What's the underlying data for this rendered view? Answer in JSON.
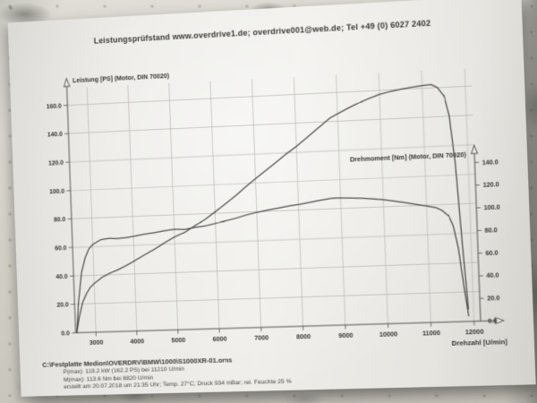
{
  "header": {
    "contact_line": "Leistungsprüfstand www.overdrive1.de; overdrive001@web.de; Tel +49 (0) 6027 2402"
  },
  "colors": {
    "paper": "#e9e8e4",
    "curve": "#42403d",
    "grid": "#b2b0aa",
    "axis": "#55534f",
    "tick_text": "#383633"
  },
  "chart_data": {
    "type": "line",
    "title": "",
    "grid": true,
    "x_axis": {
      "label": "Drehzahl [U/min]",
      "min": 2500,
      "max": 12150,
      "ticks": [
        3000,
        4000,
        5000,
        6000,
        7000,
        8000,
        9000,
        10000,
        11000,
        12000
      ]
    },
    "left_axis": {
      "label": "Leistung [PS] (Motor, DIN 70020)",
      "min": 0,
      "max": 172,
      "ticks": [
        0,
        20,
        40,
        60,
        80,
        100,
        120,
        140,
        160
      ]
    },
    "right_axis": {
      "label": "Drehmoment [Nm] (Motor, DIN 70020)",
      "min": 0,
      "ticks": [
        0,
        20,
        40,
        60,
        80,
        100,
        120,
        140
      ],
      "ps_ratio": 0.77
    },
    "series": [
      {
        "name": "Leistung",
        "unit": "PS",
        "axis": "left",
        "x": [
          2530,
          2600,
          2700,
          2800,
          2900,
          3000,
          3200,
          3400,
          3600,
          3800,
          4000,
          4250,
          4500,
          4750,
          5000,
          5250,
          5500,
          5750,
          6000,
          6250,
          6500,
          6750,
          7000,
          7250,
          7500,
          7750,
          8000,
          8250,
          8500,
          8820,
          9000,
          9250,
          9500,
          9750,
          10000,
          10250,
          10500,
          10750,
          11000,
          11210,
          11350,
          11500,
          11600,
          11700,
          11800,
          11880
        ],
        "y": [
          0,
          10.4,
          21.1,
          27.1,
          31.4,
          34.2,
          38.3,
          41.1,
          43.3,
          46.0,
          49.0,
          52.9,
          56.7,
          60.9,
          64.8,
          67.7,
          72.0,
          76.1,
          81.2,
          86.3,
          91.6,
          97.5,
          103.1,
          108.4,
          113.7,
          119.2,
          124.2,
          129.8,
          135.5,
          142.7,
          145.3,
          148.8,
          152.0,
          154.8,
          157.2,
          158.8,
          160.0,
          161.0,
          161.8,
          162.2,
          160.0,
          153.9,
          140.4,
          108.3,
          50.4,
          8.5
        ]
      },
      {
        "name": "Drehmoment",
        "unit": "Nm",
        "axis": "right",
        "x": [
          2530,
          2600,
          2700,
          2800,
          2900,
          3000,
          3200,
          3400,
          3600,
          3800,
          4000,
          4250,
          4500,
          4750,
          5000,
          5250,
          5500,
          5750,
          6000,
          6250,
          6500,
          6750,
          7000,
          7250,
          7500,
          7750,
          8000,
          8250,
          8500,
          8820,
          9000,
          9250,
          9500,
          9750,
          10000,
          10250,
          10500,
          10750,
          11000,
          11210,
          11350,
          11500,
          11600,
          11700,
          11800,
          11880
        ],
        "y": [
          0,
          28,
          55,
          68,
          76,
          80,
          84,
          85,
          84.5,
          85,
          86,
          87.5,
          88.5,
          90,
          91,
          90.5,
          92,
          93,
          95,
          97,
          99,
          101.5,
          103.5,
          105,
          106.5,
          108,
          109,
          110.5,
          112,
          113.6,
          113.4,
          113,
          112.4,
          111.5,
          110.4,
          108.8,
          107,
          105.2,
          103.3,
          101.6,
          99,
          94,
          85,
          65,
          30,
          5
        ]
      }
    ],
    "annotations": {
      "p_max": "P(max): 119.2 kW (162.2 PS) bei 11210 U/min",
      "m_max": "M(max): 113.6 Nm bei 8820 U/min"
    }
  },
  "footer": {
    "file_path": "C:\\Festplatte Medion\\OVERDRV\\BMW\\1000\\S1000XR-01.oms",
    "p_max": "P(max): 119.2 kW (162.2 PS) bei 11210 U/min",
    "m_max": "M(max): 113.6 Nm bei 8820 U/min",
    "conditions": "erstellt am 20.07.2018 um 21:35 Uhr; Temp. 27°C; Druck 934 mBar; rel. Feuchte 25 %"
  }
}
